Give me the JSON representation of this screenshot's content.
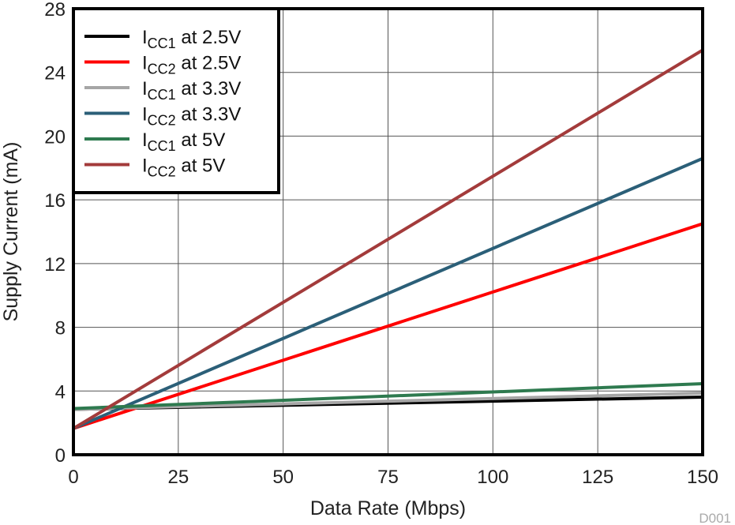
{
  "chart_data": {
    "type": "line",
    "xlabel": "Data Rate (Mbps)",
    "ylabel": "Supply Current (mA)",
    "xlim": [
      0,
      150
    ],
    "ylim": [
      0,
      28
    ],
    "xticks": [
      0,
      25,
      50,
      75,
      100,
      125,
      150
    ],
    "yticks": [
      0,
      4,
      8,
      12,
      16,
      20,
      24,
      28
    ],
    "grid": true,
    "legend_position": "top-left",
    "footnote": "D001",
    "series": [
      {
        "name": "ICC1 at 2.5V",
        "label_main": "I",
        "label_sub": "CC1",
        "label_rest": " at 2.5V",
        "color": "#000000",
        "x": [
          0,
          150
        ],
        "y": [
          2.85,
          3.62
        ]
      },
      {
        "name": "ICC2 at 2.5V",
        "label_main": "I",
        "label_sub": "CC2",
        "label_rest": " at 2.5V",
        "color": "#ff0000",
        "x": [
          0,
          150
        ],
        "y": [
          1.65,
          14.5
        ]
      },
      {
        "name": "ICC1 at 3.3V",
        "label_main": "I",
        "label_sub": "CC1",
        "label_rest": " at 3.3V",
        "color": "#a6a6a6",
        "x": [
          0,
          150
        ],
        "y": [
          2.85,
          3.87
        ]
      },
      {
        "name": "ICC2 at 3.3V",
        "label_main": "I",
        "label_sub": "CC2",
        "label_rest": " at 3.3V",
        "color": "#2b5f78",
        "x": [
          0,
          150
        ],
        "y": [
          1.65,
          18.6
        ]
      },
      {
        "name": "ICC1 at 5V",
        "label_main": "I",
        "label_sub": "CC1",
        "label_rest": " at 5V",
        "color": "#2e7a4f",
        "x": [
          0,
          150
        ],
        "y": [
          2.9,
          4.46
        ]
      },
      {
        "name": "ICC2 at 5V",
        "label_main": "I",
        "label_sub": "CC2",
        "label_rest": " at 5V",
        "color": "#a33b3b",
        "x": [
          0,
          150
        ],
        "y": [
          1.65,
          25.4
        ]
      }
    ]
  }
}
